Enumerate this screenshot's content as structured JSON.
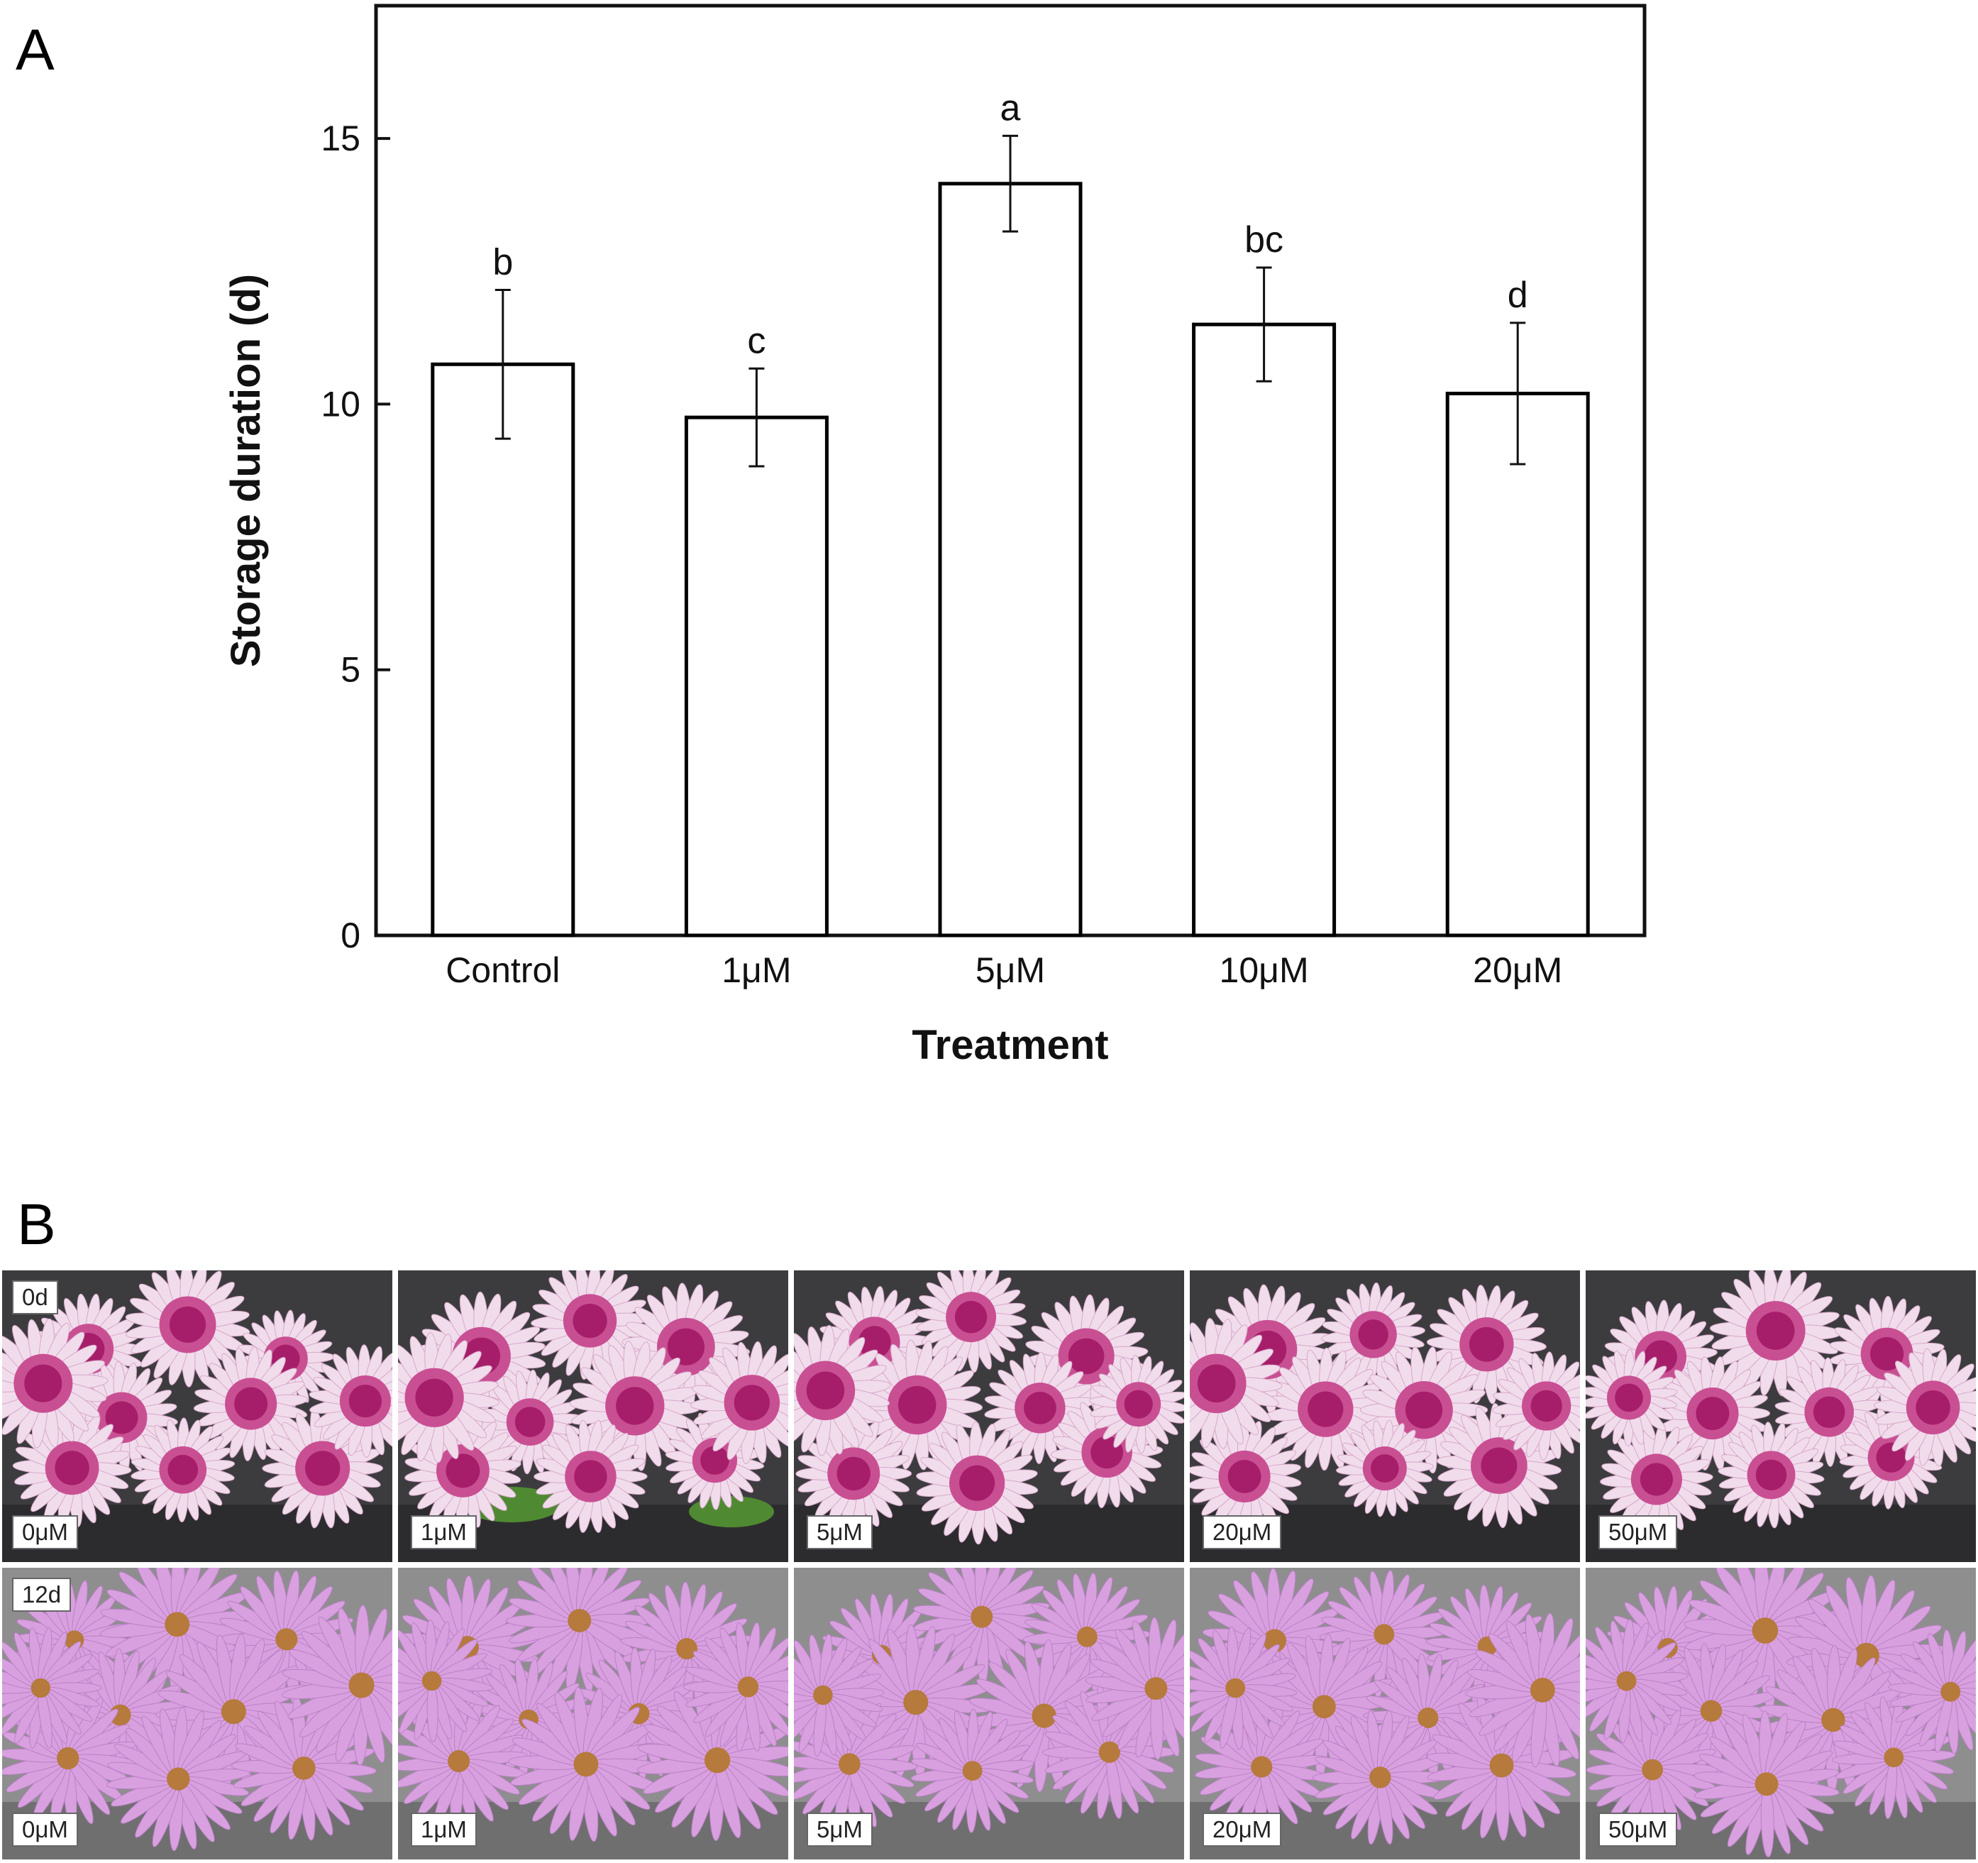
{
  "panels": {
    "a": "A",
    "b": "B"
  },
  "chart_data": {
    "type": "bar",
    "xlabel": "Treatment",
    "ylabel": "Storage duration (d)",
    "ylim": [
      0,
      17.5
    ],
    "yticks": [
      0,
      5,
      10,
      15
    ],
    "categories": [
      "Control",
      "1μM",
      "5μM",
      "10μM",
      "20μM"
    ],
    "values": [
      10.75,
      9.75,
      14.15,
      11.5,
      10.2
    ],
    "errors": [
      1.4,
      0.92,
      0.9,
      1.07,
      1.33
    ],
    "significance": [
      "b",
      "c",
      "a",
      "bc",
      "d"
    ],
    "grid": false,
    "bar_fill": "#ffffff",
    "bar_stroke": "#000000"
  },
  "photos": {
    "rows": [
      {
        "day": "0d",
        "labels": [
          "0μM",
          "1μM",
          "5μM",
          "20μM",
          "50μM"
        ]
      },
      {
        "day": "12d",
        "labels": [
          "0μM",
          "1μM",
          "5μM",
          "20μM",
          "50μM"
        ]
      }
    ],
    "colors": {
      "fresh_petal": "#f1dcec",
      "fresh_center": "#a61e6a",
      "fresh_mid": "#c94f93",
      "aged_petal": "#d9a0e0",
      "aged_center": "#b57a3c",
      "bg_fresh": "#3c3c3f",
      "bg_aged": "#8e8e8f",
      "leaf": "#4f8a32"
    }
  }
}
